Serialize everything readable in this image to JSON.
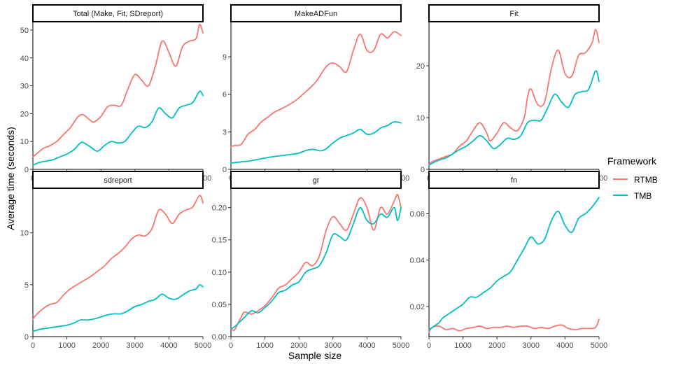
{
  "figure": {
    "xlabel": "Sample size",
    "ylabel": "Average time (seconds)",
    "legend": {
      "title": "Framework",
      "placement": "right",
      "entries": [
        {
          "name": "RTMB",
          "color": "#F8766D"
        },
        {
          "name": "TMB",
          "color": "#00BFC4"
        }
      ]
    }
  },
  "chart_data": [
    {
      "type": "line",
      "title": "Total (Make, Fit, SDreport)",
      "xlim": [
        0,
        5000
      ],
      "ylim": [
        0,
        53
      ],
      "xticks": [
        0,
        1000,
        2000,
        3000,
        4000,
        5000
      ],
      "xtick_labels": [
        "0",
        "1000",
        "2000",
        "3000",
        "4000",
        "5000"
      ],
      "yticks": [
        0,
        10,
        20,
        30,
        40,
        50
      ],
      "ytick_labels": [
        "0",
        "10",
        "20",
        "30",
        "40",
        "50"
      ],
      "series": [
        {
          "name": "RTMB",
          "color": "#F8766D",
          "x": [
            0,
            100,
            200,
            300,
            400,
            500,
            700,
            900,
            1100,
            1300,
            1400,
            1500,
            1700,
            1800,
            2000,
            2200,
            2400,
            2600,
            2800,
            3000,
            3200,
            3400,
            3600,
            3800,
            4000,
            4200,
            4400,
            4600,
            4800,
            4900,
            5000
          ],
          "y": [
            4.5,
            5.5,
            6.5,
            7.5,
            8,
            8.5,
            10,
            12.5,
            15,
            18.5,
            19.5,
            19.5,
            17.5,
            17,
            19,
            22.5,
            23,
            23,
            29,
            34,
            32,
            30,
            37,
            46,
            42,
            37,
            44,
            46,
            47,
            52,
            49
          ]
        },
        {
          "name": "TMB",
          "color": "#00BFC4",
          "x": [
            0,
            200,
            400,
            600,
            800,
            1000,
            1200,
            1400,
            1500,
            1700,
            1900,
            2100,
            2300,
            2500,
            2700,
            2900,
            3100,
            3300,
            3500,
            3700,
            3900,
            4100,
            4300,
            4500,
            4700,
            4900,
            5000
          ],
          "y": [
            1.5,
            2.5,
            3,
            3.5,
            4.5,
            5.5,
            7,
            9.5,
            9.5,
            8,
            6.5,
            8.5,
            10,
            9.5,
            10,
            13,
            15.5,
            15,
            17,
            22,
            20,
            18.5,
            22,
            23,
            24,
            28,
            26.5
          ]
        }
      ]
    },
    {
      "type": "line",
      "title": "MakeADFun",
      "xlim": [
        0,
        5000
      ],
      "ylim": [
        0,
        11.8
      ],
      "xticks": [
        0,
        1000,
        2000,
        3000,
        4000,
        5000
      ],
      "xtick_labels": [
        "0",
        "1000",
        "2000",
        "3000",
        "4000",
        "5000"
      ],
      "yticks": [
        0,
        3,
        6,
        9
      ],
      "ytick_labels": [
        "0",
        "3",
        "6",
        "9"
      ],
      "series": [
        {
          "name": "RTMB",
          "color": "#F8766D",
          "x": [
            0,
            100,
            300,
            500,
            700,
            900,
            1100,
            1300,
            1600,
            1900,
            2200,
            2500,
            2800,
            3000,
            3200,
            3400,
            3600,
            3800,
            4000,
            4200,
            4400,
            4600,
            4800,
            5000
          ],
          "y": [
            1.8,
            1.9,
            2,
            2.8,
            3.2,
            3.8,
            4.2,
            4.6,
            5,
            5.5,
            6.2,
            7,
            8.2,
            8.5,
            8.2,
            7.8,
            9.5,
            10.8,
            9.5,
            9.5,
            10.8,
            10.5,
            11,
            10.7
          ]
        },
        {
          "name": "TMB",
          "color": "#00BFC4",
          "x": [
            0,
            300,
            500,
            800,
            1000,
            1200,
            1500,
            1800,
            2000,
            2200,
            2400,
            2700,
            3000,
            3200,
            3400,
            3600,
            3800,
            4000,
            4200,
            4400,
            4600,
            4800,
            5000
          ],
          "y": [
            0.5,
            0.6,
            0.65,
            0.8,
            0.9,
            1.0,
            1.1,
            1.2,
            1.3,
            1.5,
            1.6,
            1.5,
            2.1,
            2.5,
            2.7,
            2.9,
            3.2,
            2.8,
            2.9,
            3.3,
            3.5,
            3.8,
            3.7
          ]
        }
      ]
    },
    {
      "type": "line",
      "title": "Fit",
      "xlim": [
        0,
        5000
      ],
      "ylim": [
        0,
        28.5
      ],
      "xticks": [
        0,
        1000,
        2000,
        3000,
        4000,
        5000
      ],
      "xtick_labels": [
        "0",
        "1000",
        "2000",
        "3000",
        "4000",
        "5000"
      ],
      "yticks": [
        0,
        10,
        20
      ],
      "ytick_labels": [
        "0",
        "10",
        "20"
      ],
      "series": [
        {
          "name": "RTMB",
          "color": "#F8766D",
          "x": [
            0,
            100,
            300,
            500,
            700,
            900,
            1100,
            1300,
            1500,
            1700,
            1800,
            2000,
            2200,
            2400,
            2600,
            2800,
            2900,
            3000,
            3200,
            3400,
            3600,
            3800,
            4000,
            4200,
            4400,
            4600,
            4800,
            4900,
            5000
          ],
          "y": [
            1,
            1.5,
            2,
            2.5,
            3,
            4.5,
            5.5,
            7.5,
            9,
            7,
            5.5,
            7,
            9,
            8,
            7.5,
            10,
            14,
            15.5,
            12.5,
            13,
            19.5,
            23,
            18.5,
            18,
            22,
            22.5,
            24.5,
            27,
            24.5
          ]
        },
        {
          "name": "TMB",
          "color": "#00BFC4",
          "x": [
            0,
            100,
            300,
            500,
            700,
            900,
            1100,
            1300,
            1500,
            1700,
            1900,
            2100,
            2300,
            2500,
            2700,
            2900,
            3100,
            3300,
            3500,
            3700,
            3900,
            4100,
            4300,
            4500,
            4700,
            4900,
            5000
          ],
          "y": [
            0.8,
            1.2,
            1.8,
            2.2,
            3,
            3.8,
            4.5,
            5.5,
            6.5,
            5.5,
            4,
            4.8,
            6,
            5.8,
            6.5,
            9,
            9.5,
            9.5,
            12,
            14.5,
            13,
            12,
            14.5,
            15,
            15.5,
            19,
            17
          ]
        }
      ]
    },
    {
      "type": "line",
      "title": "sdreport",
      "xlim": [
        0,
        5000
      ],
      "ylim": [
        0,
        14.3
      ],
      "xticks": [
        0,
        1000,
        2000,
        3000,
        4000,
        5000
      ],
      "xtick_labels": [
        "0",
        "1000",
        "2000",
        "3000",
        "4000",
        "5000"
      ],
      "yticks": [
        0,
        5,
        10
      ],
      "ytick_labels": [
        "0",
        "5",
        "10"
      ],
      "series": [
        {
          "name": "RTMB",
          "color": "#F8766D",
          "x": [
            0,
            100,
            300,
            500,
            700,
            900,
            1100,
            1300,
            1500,
            1700,
            1900,
            2100,
            2300,
            2500,
            2700,
            2900,
            3100,
            3300,
            3500,
            3700,
            3900,
            4100,
            4300,
            4500,
            4700,
            4900,
            5000
          ],
          "y": [
            1.7,
            2.1,
            2.7,
            3.1,
            3.3,
            4,
            4.6,
            5,
            5.4,
            5.8,
            6.3,
            6.8,
            7.5,
            8,
            8.6,
            9.4,
            9.8,
            9.7,
            10.4,
            12.2,
            11.8,
            10.9,
            11.8,
            12.2,
            12.5,
            13.6,
            12.9
          ]
        },
        {
          "name": "TMB",
          "color": "#00BFC4",
          "x": [
            0,
            200,
            400,
            600,
            800,
            1000,
            1200,
            1400,
            1600,
            1800,
            2000,
            2200,
            2400,
            2600,
            2800,
            3000,
            3200,
            3400,
            3600,
            3800,
            4000,
            4200,
            4400,
            4600,
            4800,
            4900,
            5000
          ],
          "y": [
            0.5,
            0.7,
            0.8,
            0.9,
            1,
            1.1,
            1.3,
            1.6,
            1.6,
            1.7,
            1.9,
            2.1,
            2.2,
            2.2,
            2.5,
            2.9,
            3.1,
            3.4,
            3.6,
            4.1,
            3.7,
            3.6,
            4,
            4.4,
            4.6,
            5,
            4.8
          ]
        }
      ]
    },
    {
      "type": "line",
      "title": "gr",
      "xlim": [
        0,
        5000
      ],
      "ylim": [
        0,
        0.23
      ],
      "xticks": [
        0,
        1000,
        2000,
        3000,
        4000,
        5000
      ],
      "xtick_labels": [
        "0",
        "1000",
        "2000",
        "3000",
        "4000",
        "5000"
      ],
      "yticks": [
        0,
        0.05,
        0.1,
        0.15,
        0.2
      ],
      "ytick_labels": [
        "0.00",
        "0.05",
        "0.10",
        "0.15",
        "0.20"
      ],
      "series": [
        {
          "name": "RTMB",
          "color": "#F8766D",
          "x": [
            0,
            100,
            200,
            300,
            400,
            600,
            800,
            1000,
            1200,
            1400,
            1600,
            1800,
            2000,
            2200,
            2400,
            2600,
            2800,
            3000,
            3200,
            3400,
            3600,
            3800,
            4000,
            4200,
            4400,
            4600,
            4800,
            4900,
            5000
          ],
          "y": [
            0.012,
            0.01,
            0.02,
            0.03,
            0.038,
            0.035,
            0.04,
            0.048,
            0.06,
            0.075,
            0.08,
            0.09,
            0.1,
            0.115,
            0.11,
            0.125,
            0.165,
            0.186,
            0.175,
            0.165,
            0.19,
            0.215,
            0.2,
            0.165,
            0.2,
            0.19,
            0.21,
            0.22,
            0.2
          ]
        },
        {
          "name": "TMB",
          "color": "#00BFC4",
          "x": [
            0,
            100,
            200,
            300,
            400,
            600,
            800,
            1000,
            1200,
            1400,
            1600,
            1800,
            2000,
            2200,
            2400,
            2600,
            2800,
            3000,
            3200,
            3400,
            3600,
            3800,
            4000,
            4200,
            4400,
            4600,
            4800,
            4900,
            5000
          ],
          "y": [
            0.012,
            0.015,
            0.02,
            0.025,
            0.03,
            0.04,
            0.037,
            0.045,
            0.055,
            0.068,
            0.072,
            0.08,
            0.085,
            0.1,
            0.105,
            0.11,
            0.13,
            0.158,
            0.155,
            0.15,
            0.175,
            0.2,
            0.18,
            0.175,
            0.19,
            0.185,
            0.2,
            0.18,
            0.2
          ]
        }
      ]
    },
    {
      "type": "line",
      "title": "fn",
      "xlim": [
        0,
        5000
      ],
      "ylim": [
        0.007,
        0.071
      ],
      "xticks": [
        0,
        1000,
        2000,
        3000,
        4000,
        5000
      ],
      "xtick_labels": [
        "0",
        "1000",
        "2000",
        "3000",
        "4000",
        "5000"
      ],
      "yticks": [
        0.02,
        0.04,
        0.06
      ],
      "ytick_labels": [
        "0.02",
        "0.04",
        "0.06"
      ],
      "series": [
        {
          "name": "RTMB",
          "color": "#F8766D",
          "x": [
            0,
            100,
            300,
            500,
            700,
            900,
            1100,
            1300,
            1500,
            1700,
            1900,
            2100,
            2300,
            2500,
            2700,
            2900,
            3100,
            3300,
            3500,
            3700,
            3900,
            4100,
            4300,
            4500,
            4700,
            4900,
            5000
          ],
          "y": [
            0.009,
            0.011,
            0.0115,
            0.01,
            0.0105,
            0.0095,
            0.0105,
            0.011,
            0.0115,
            0.0105,
            0.011,
            0.011,
            0.0115,
            0.011,
            0.0115,
            0.0115,
            0.0105,
            0.011,
            0.0105,
            0.0115,
            0.012,
            0.0105,
            0.01,
            0.0105,
            0.0105,
            0.011,
            0.0145
          ]
        },
        {
          "name": "TMB",
          "color": "#00BFC4",
          "x": [
            0,
            100,
            200,
            300,
            400,
            600,
            800,
            1000,
            1200,
            1400,
            1600,
            1800,
            2000,
            2200,
            2400,
            2600,
            2800,
            3000,
            3200,
            3400,
            3600,
            3800,
            4000,
            4200,
            4400,
            4600,
            4800,
            5000
          ],
          "y": [
            0.01,
            0.011,
            0.012,
            0.013,
            0.015,
            0.017,
            0.019,
            0.021,
            0.024,
            0.024,
            0.026,
            0.028,
            0.031,
            0.033,
            0.035,
            0.04,
            0.045,
            0.05,
            0.047,
            0.049,
            0.057,
            0.061,
            0.055,
            0.052,
            0.058,
            0.06,
            0.063,
            0.067
          ]
        }
      ]
    }
  ]
}
